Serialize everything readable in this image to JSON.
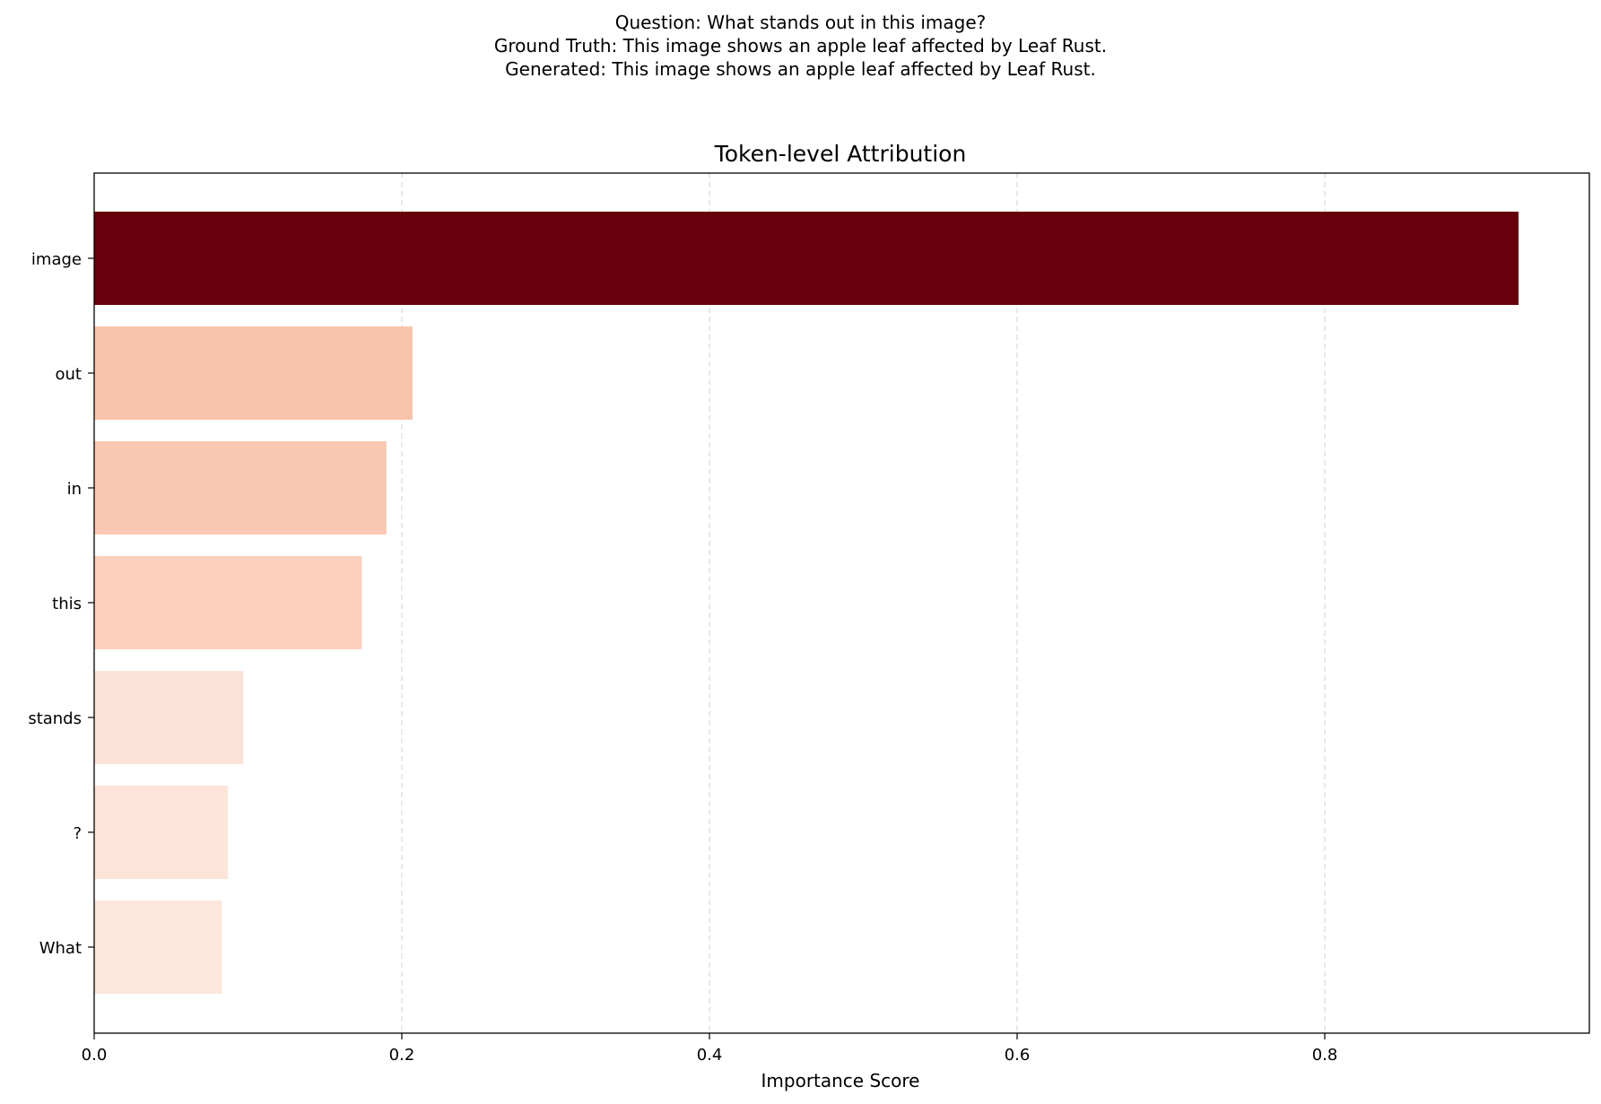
{
  "figure_title_lines": [
    "Question: What stands out in this image?",
    "Ground Truth: This image shows an apple leaf affected by Leaf Rust.",
    "Generated: This image shows an apple leaf affected by Leaf Rust."
  ],
  "chart_data": {
    "type": "bar",
    "orientation": "horizontal",
    "title": "Token-level Attribution",
    "xlabel": "Importance Score",
    "ylabel": "",
    "categories": [
      "image",
      "out",
      "in",
      "this",
      "stands",
      "?",
      "What"
    ],
    "values": [
      0.926,
      0.207,
      0.19,
      0.174,
      0.097,
      0.087,
      0.083
    ],
    "bar_colors": [
      "#67000d",
      "#f9c4ab",
      "#fac8b2",
      "#fbcfbc",
      "#fde2d8",
      "#fde4d9",
      "#fde6dc"
    ],
    "colormap": "Reds",
    "xlim": [
      0,
      0.972
    ],
    "xticks": [
      0.0,
      0.2,
      0.4,
      0.6,
      0.8
    ],
    "xtick_labels": [
      "0.0",
      "0.2",
      "0.4",
      "0.6",
      "0.8"
    ],
    "grid": "x-axis dashed",
    "legend": "none"
  }
}
